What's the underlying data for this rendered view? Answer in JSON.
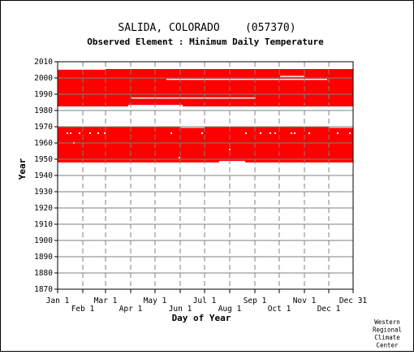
{
  "chart_data": {
    "type": "heatmap",
    "title": "SALIDA, COLORADO    (057370)",
    "subtitle": "Observed Element : Minimum Daily Temperature",
    "xlabel": "Day of Year",
    "ylabel": "Year",
    "xlim": [
      1,
      365
    ],
    "ylim": [
      1870,
      2010
    ],
    "grid": true,
    "x_ticks_upper": [
      {
        "label": "Jan 1",
        "day": 1
      },
      {
        "label": "Mar 1",
        "day": 60
      },
      {
        "label": "May 1",
        "day": 121
      },
      {
        "label": "Jul 1",
        "day": 182
      },
      {
        "label": "Sep 1",
        "day": 244
      },
      {
        "label": "Nov 1",
        "day": 305
      },
      {
        "label": "Dec 31",
        "day": 365
      }
    ],
    "x_ticks_lower": [
      {
        "label": "Feb 1",
        "day": 32
      },
      {
        "label": "Apr 1",
        "day": 91
      },
      {
        "label": "Jun 1",
        "day": 152
      },
      {
        "label": "Aug 1",
        "day": 213
      },
      {
        "label": "Oct 1",
        "day": 274
      },
      {
        "label": "Dec 1",
        "day": 335
      }
    ],
    "y_ticks": [
      1870,
      1880,
      1890,
      1900,
      1910,
      1920,
      1930,
      1940,
      1950,
      1960,
      1970,
      1980,
      1990,
      2000,
      2010
    ],
    "data_color": "#ff0000",
    "data_blocks": [
      {
        "day_start": 1,
        "day_end": 365,
        "year_start": 1948,
        "year_end": 1969.9
      },
      {
        "day_start": 1,
        "day_end": 365,
        "year_start": 1982.5,
        "year_end": 2005.5
      }
    ],
    "gaps": [
      {
        "day_start": 1,
        "day_end": 60,
        "year_start": 2005.3,
        "year_end": 2005.6
      },
      {
        "day_start": 88,
        "day_end": 155,
        "year_start": 1982.5,
        "year_end": 1983.4
      },
      {
        "day_start": 92,
        "day_end": 245,
        "year_start": 1987.3,
        "year_end": 1988.0
      },
      {
        "day_start": 135,
        "day_end": 333,
        "year_start": 1998.8,
        "year_end": 1999.5
      },
      {
        "day_start": 275,
        "day_end": 305,
        "year_start": 2000.6,
        "year_end": 2001.3
      },
      {
        "day_start": 200,
        "day_end": 232,
        "year_start": 1948.0,
        "year_end": 1948.9
      },
      {
        "day_start": 152,
        "day_end": 182,
        "year_start": 1969.3,
        "year_end": 1969.9
      },
      {
        "day_start": 335,
        "day_end": 365,
        "year_start": 1969.3,
        "year_end": 1969.9
      },
      {
        "day_start": 120,
        "day_end": 135,
        "year_start": 1962.0,
        "year_end": 1968.0
      },
      {
        "day_start": 300,
        "day_end": 330,
        "year_start": 1962.0,
        "year_end": 1968.0
      }
    ]
  },
  "credit_lines": [
    "Western",
    "Regional",
    "Climate",
    "Center"
  ]
}
